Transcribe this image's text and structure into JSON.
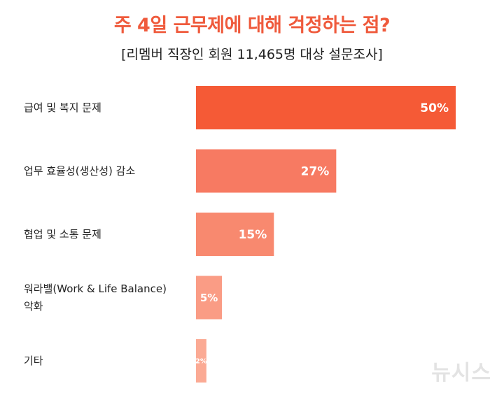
{
  "chart_data": {
    "type": "bar",
    "orientation": "horizontal",
    "title": "주 4일 근무제에 대해 걱정하는 점?",
    "subtitle": "[리멤버 직장인 회원 11,465명 대상 설문조사]",
    "categories": [
      [
        "급여 및 복지 문제"
      ],
      [
        "업무 효율성(생산성) 감소"
      ],
      [
        "협업 및 소통 문제"
      ],
      [
        "워라밸(Work & Life Balance)",
        "악화"
      ],
      [
        "기타"
      ]
    ],
    "values": [
      50,
      27,
      15,
      5,
      2
    ],
    "value_labels": [
      "50%",
      "27%",
      "15%",
      "5%",
      "2%"
    ],
    "unit": "%",
    "colors": [
      "#f55a36",
      "#f77a62",
      "#f8896f",
      "#fa9c85",
      "#fbaa94"
    ],
    "xlim": [
      0,
      50
    ],
    "grid": false,
    "legend": "none"
  },
  "watermark": "뉴시스"
}
